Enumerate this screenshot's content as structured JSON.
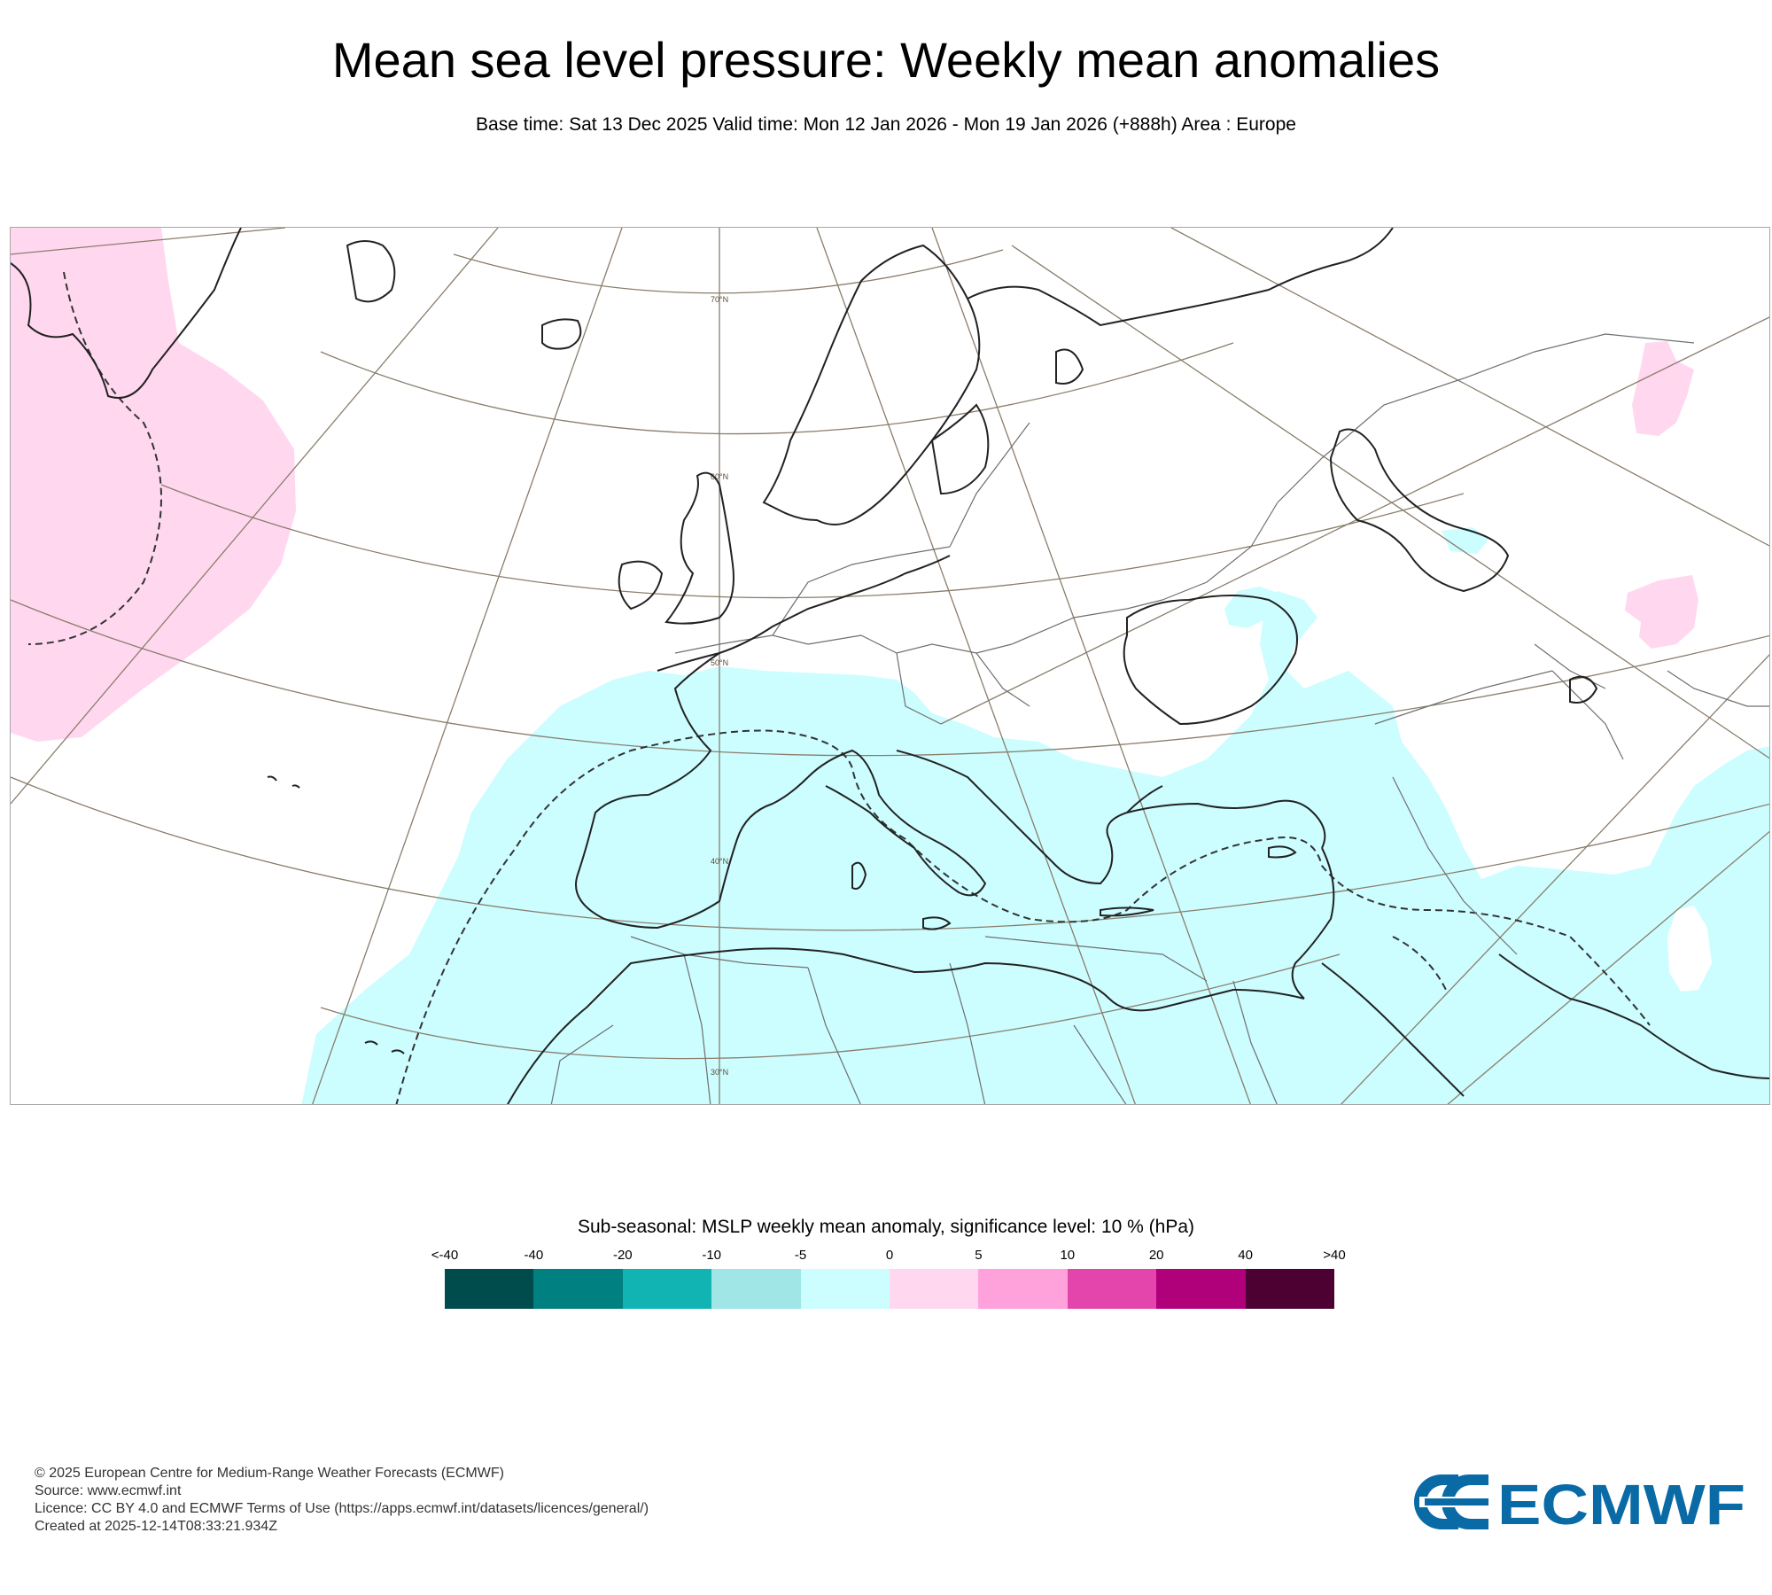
{
  "header": {
    "title": "Mean sea level pressure: Weekly mean anomalies",
    "subtitle": "Base time: Sat 13 Dec 2025 Valid time: Mon 12 Jan 2026 - Mon 19 Jan 2026 (+888h) Area : Europe"
  },
  "map": {
    "area": "Europe",
    "latitude_labels": [
      "70°N",
      "60°N",
      "50°N",
      "40°N",
      "30°N"
    ],
    "colors": {
      "positive_anomaly": "#ffd8f0",
      "negative_anomaly": "#ccfdff",
      "coastline": "#222222",
      "border": "#666666",
      "graticule": "#8a7d6b"
    }
  },
  "legend": {
    "title": "Sub-seasonal: MSLP weekly mean anomaly, significance level: 10 % (hPa)",
    "ticks": [
      "<-40",
      "-40",
      "-20",
      "-10",
      "-5",
      "0",
      "5",
      "10",
      "20",
      "40",
      ">40"
    ],
    "colors": [
      "#004b4b",
      "#008080",
      "#11b3b3",
      "#a0e6e6",
      "#ccfdff",
      "#ffd8f0",
      "#ffa2dc",
      "#e445ac",
      "#b0007a",
      "#4d0032"
    ]
  },
  "footer": {
    "copyright": "© 2025 European Centre for Medium-Range Weather Forecasts (ECMWF)",
    "source": "Source: www.ecmwf.int",
    "licence": "Licence: CC BY 4.0 and ECMWF Terms of Use (https://apps.ecmwf.int/datasets/licences/general/)",
    "created": "Created at 2025-12-14T08:33:21.934Z"
  },
  "logo": {
    "text": "ECMWF",
    "color": "#0a6aa6"
  }
}
